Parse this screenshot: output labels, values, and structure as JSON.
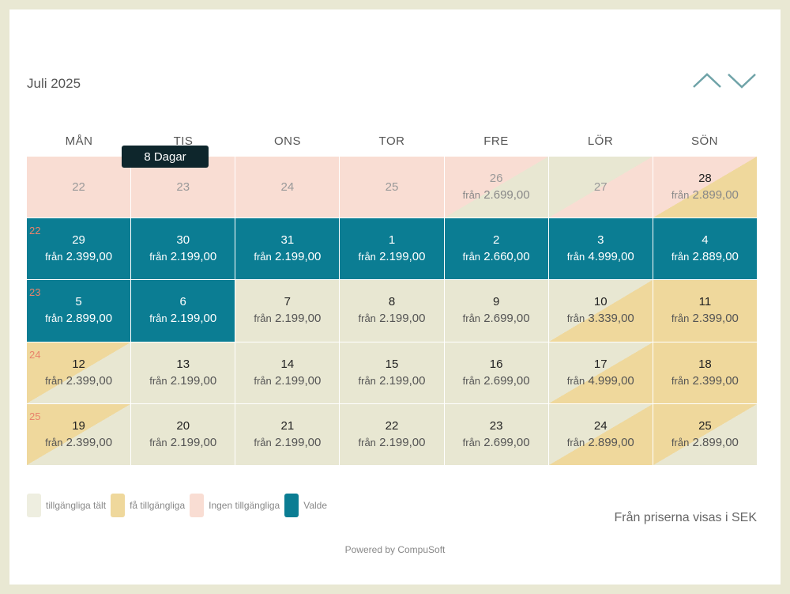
{
  "header": {
    "month_title": "Juli 2025",
    "nav_up_icon": "chevron-up-icon",
    "nav_down_icon": "chevron-down-icon",
    "accent_color": "#6fa3a8"
  },
  "weekdays": [
    "MÅN",
    "TIS",
    "ONS",
    "TOR",
    "FRE",
    "LÖR",
    "SÖN"
  ],
  "price_prefix": "från",
  "weeks": [
    {
      "week_no": "",
      "days": [
        {
          "day": "22",
          "price": "",
          "status": "none"
        },
        {
          "day": "23",
          "price": "",
          "status": "none"
        },
        {
          "day": "24",
          "price": "",
          "status": "none"
        },
        {
          "day": "25",
          "price": "",
          "status": "none"
        },
        {
          "day": "26",
          "price": "2.699,00",
          "status": "avail-none"
        },
        {
          "day": "27",
          "price": "",
          "status": "none-avail"
        },
        {
          "day": "28",
          "price": "2.899,00",
          "status": "few-none"
        }
      ]
    },
    {
      "week_no": "22",
      "days": [
        {
          "day": "29",
          "price": "2.399,00",
          "status": "sel"
        },
        {
          "day": "30",
          "price": "2.199,00",
          "status": "sel"
        },
        {
          "day": "31",
          "price": "2.199,00",
          "status": "sel"
        },
        {
          "day": "1",
          "price": "2.199,00",
          "status": "sel"
        },
        {
          "day": "2",
          "price": "2.660,00",
          "status": "sel"
        },
        {
          "day": "3",
          "price": "4.999,00",
          "status": "sel"
        },
        {
          "day": "4",
          "price": "2.889,00",
          "status": "sel"
        }
      ]
    },
    {
      "week_no": "23",
      "days": [
        {
          "day": "5",
          "price": "2.899,00",
          "status": "sel"
        },
        {
          "day": "6",
          "price": "2.199,00",
          "status": "sel"
        },
        {
          "day": "7",
          "price": "2.199,00",
          "status": "avail"
        },
        {
          "day": "8",
          "price": "2.199,00",
          "status": "avail"
        },
        {
          "day": "9",
          "price": "2.699,00",
          "status": "avail"
        },
        {
          "day": "10",
          "price": "3.339,00",
          "status": "few-avail"
        },
        {
          "day": "11",
          "price": "2.399,00",
          "status": "few"
        }
      ]
    },
    {
      "week_no": "24",
      "days": [
        {
          "day": "12",
          "price": "2.399,00",
          "status": "avail-few"
        },
        {
          "day": "13",
          "price": "2.199,00",
          "status": "avail"
        },
        {
          "day": "14",
          "price": "2.199,00",
          "status": "avail"
        },
        {
          "day": "15",
          "price": "2.199,00",
          "status": "avail"
        },
        {
          "day": "16",
          "price": "2.699,00",
          "status": "avail"
        },
        {
          "day": "17",
          "price": "4.999,00",
          "status": "few-avail"
        },
        {
          "day": "18",
          "price": "2.399,00",
          "status": "few"
        }
      ]
    },
    {
      "week_no": "25",
      "days": [
        {
          "day": "19",
          "price": "2.399,00",
          "status": "avail-few"
        },
        {
          "day": "20",
          "price": "2.199,00",
          "status": "avail"
        },
        {
          "day": "21",
          "price": "2.199,00",
          "status": "avail"
        },
        {
          "day": "22",
          "price": "2.199,00",
          "status": "avail"
        },
        {
          "day": "23",
          "price": "2.699,00",
          "status": "avail"
        },
        {
          "day": "24",
          "price": "2.899,00",
          "status": "few-avail"
        },
        {
          "day": "25",
          "price": "2.899,00",
          "status": "avail-few"
        }
      ]
    }
  ],
  "tooltip": {
    "text": "8 Dagar"
  },
  "legend": [
    {
      "label": "tillgängliga tält",
      "color": "#eeeee0"
    },
    {
      "label": "få tillgängliga",
      "color": "#efd89c"
    },
    {
      "label": "Ingen  tillgängliga",
      "color": "#f9ddd3"
    },
    {
      "label": "Valde",
      "color": "#0b7d93"
    }
  ],
  "currency_note": "Från priserna visas i SEK",
  "powered_by": "Powered by CompuSoft"
}
